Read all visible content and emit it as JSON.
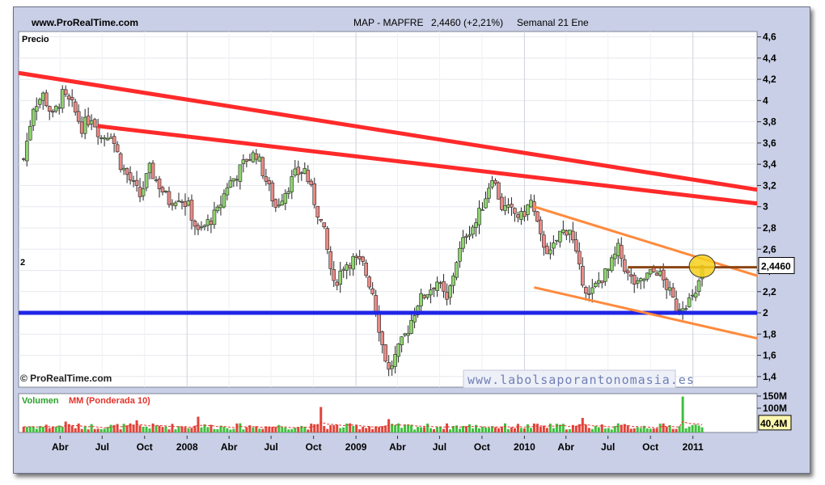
{
  "header": {
    "site": "www.ProRealTime.com",
    "instrument": "MAP - MAPFRE",
    "price_change": "2,4460 (+2,21%)",
    "period": "Semanal  21 Ene"
  },
  "panel_label": "Precio",
  "copyright": "© ProRealTime.com",
  "watermark": "www.labolsaporantonomasia.es",
  "support_label": "2",
  "volume_label": {
    "prefix": "Volumen",
    "ma": "MM (Ponderada 10)"
  },
  "colors": {
    "up": "#8fd46f",
    "down": "#e88a86",
    "resistance": "#ff2a2a",
    "support": "#1f25e6",
    "channel": "#ff8a3c",
    "current_level": "#8b4513",
    "highlight": "#f7d01c",
    "panel_bg": "#ffffff",
    "frame_bg": "#c9cfe6"
  },
  "chart_data": [
    {
      "type": "candlestick",
      "title": "MAP - MAPFRE",
      "period": "weekly",
      "y_ticks": [
        "4,6",
        "4,4",
        "4,2",
        "4",
        "3,8",
        "3,6",
        "3,4",
        "3,2",
        "3",
        "2,8",
        "2,6",
        "2,4",
        "2,2",
        "2",
        "1,8",
        "1,6",
        "1,4"
      ],
      "ylim": [
        1.3,
        4.65
      ],
      "x_ticks": [
        "Abr",
        "Jul",
        "Oct",
        "2008",
        "Abr",
        "Jul",
        "Oct",
        "2009",
        "Abr",
        "Jul",
        "Oct",
        "2010",
        "Abr",
        "Jul",
        "Oct",
        "2011"
      ],
      "x_tick_dates": [
        "2007-04-01",
        "2007-07-01",
        "2007-10-01",
        "2008-01-01",
        "2008-04-01",
        "2008-07-01",
        "2008-10-01",
        "2009-01-01",
        "2009-04-01",
        "2009-07-01",
        "2009-10-01",
        "2010-01-01",
        "2010-04-01",
        "2010-07-01",
        "2010-10-01",
        "2011-01-01"
      ],
      "close_path": [
        [
          "2007-01-12",
          3.45
        ],
        [
          "2007-02-02",
          3.95
        ],
        [
          "2007-02-23",
          4.05
        ],
        [
          "2007-03-16",
          3.85
        ],
        [
          "2007-04-06",
          4.05
        ],
        [
          "2007-04-27",
          3.95
        ],
        [
          "2007-05-18",
          3.75
        ],
        [
          "2007-06-08",
          3.85
        ],
        [
          "2007-06-29",
          3.65
        ],
        [
          "2007-07-20",
          3.7
        ],
        [
          "2007-08-10",
          3.4
        ],
        [
          "2007-08-31",
          3.25
        ],
        [
          "2007-09-21",
          3.1
        ],
        [
          "2007-10-12",
          3.35
        ],
        [
          "2007-11-02",
          3.2
        ],
        [
          "2007-11-23",
          3.05
        ],
        [
          "2007-12-14",
          3.1
        ],
        [
          "2008-01-04",
          3.0
        ],
        [
          "2008-01-25",
          2.75
        ],
        [
          "2008-02-15",
          2.85
        ],
        [
          "2008-03-07",
          2.95
        ],
        [
          "2008-03-28",
          3.2
        ],
        [
          "2008-04-18",
          3.3
        ],
        [
          "2008-05-09",
          3.45
        ],
        [
          "2008-05-30",
          3.5
        ],
        [
          "2008-06-20",
          3.25
        ],
        [
          "2008-07-11",
          3.0
        ],
        [
          "2008-08-01",
          3.15
        ],
        [
          "2008-08-22",
          3.3
        ],
        [
          "2008-09-12",
          3.35
        ],
        [
          "2008-10-03",
          3.05
        ],
        [
          "2008-10-24",
          2.75
        ],
        [
          "2008-11-14",
          2.25
        ],
        [
          "2008-12-05",
          2.45
        ],
        [
          "2008-12-26",
          2.5
        ],
        [
          "2009-01-16",
          2.45
        ],
        [
          "2009-02-06",
          2.2
        ],
        [
          "2009-02-27",
          1.7
        ],
        [
          "2009-03-13",
          1.45
        ],
        [
          "2009-04-03",
          1.65
        ],
        [
          "2009-04-24",
          1.85
        ],
        [
          "2009-05-15",
          2.1
        ],
        [
          "2009-06-05",
          2.2
        ],
        [
          "2009-06-26",
          2.3
        ],
        [
          "2009-07-17",
          2.1
        ],
        [
          "2009-08-07",
          2.5
        ],
        [
          "2009-08-28",
          2.75
        ],
        [
          "2009-09-18",
          2.85
        ],
        [
          "2009-10-09",
          3.1
        ],
        [
          "2009-10-23",
          3.3
        ],
        [
          "2009-11-13",
          3.0
        ],
        [
          "2009-12-04",
          2.95
        ],
        [
          "2009-12-25",
          2.9
        ],
        [
          "2010-01-15",
          3.05
        ],
        [
          "2010-02-05",
          2.7
        ],
        [
          "2010-02-26",
          2.55
        ],
        [
          "2010-03-19",
          2.75
        ],
        [
          "2010-04-09",
          2.8
        ],
        [
          "2010-04-30",
          2.4
        ],
        [
          "2010-05-21",
          2.15
        ],
        [
          "2010-06-11",
          2.3
        ],
        [
          "2010-07-02",
          2.4
        ],
        [
          "2010-07-23",
          2.6
        ],
        [
          "2010-08-13",
          2.35
        ],
        [
          "2010-09-03",
          2.25
        ],
        [
          "2010-09-24",
          2.35
        ],
        [
          "2010-10-15",
          2.4
        ],
        [
          "2010-11-05",
          2.25
        ],
        [
          "2010-11-26",
          2.05
        ],
        [
          "2010-12-17",
          2.1
        ],
        [
          "2011-01-07",
          2.15
        ],
        [
          "2011-01-21",
          2.446
        ]
      ],
      "last_price": "2,4460",
      "trendlines": [
        {
          "name": "resistance-upper",
          "from": [
            "2007-01-01",
            4.26
          ],
          "to": [
            "2011-05-20",
            3.16
          ]
        },
        {
          "name": "resistance-lower",
          "from": [
            "2007-06-22",
            3.76
          ],
          "to": [
            "2011-05-20",
            3.03
          ]
        },
        {
          "name": "support",
          "from": [
            "2007-01-01",
            2.0
          ],
          "to": [
            "2011-05-20",
            2.0
          ]
        },
        {
          "name": "channel-top",
          "from": [
            "2010-01-22",
            3.0
          ],
          "to": [
            "2011-05-20",
            2.35
          ]
        },
        {
          "name": "channel-bottom",
          "from": [
            "2010-01-22",
            2.24
          ],
          "to": [
            "2011-05-20",
            1.76
          ]
        },
        {
          "name": "current-level",
          "from": [
            "2010-08-13",
            2.43
          ],
          "to": [
            "2011-05-20",
            2.43
          ]
        }
      ],
      "highlight_point": [
        "2011-01-21",
        2.44
      ]
    },
    {
      "type": "bar",
      "title": "Volumen MM (Ponderada 10)",
      "y_ticks": [
        "150M",
        "100M"
      ],
      "ylim": [
        0,
        160
      ],
      "current_value": "40,4M",
      "notable_bars": [
        {
          "x": "2007-04-13",
          "value": 45
        },
        {
          "x": "2007-09-14",
          "value": 50
        },
        {
          "x": "2008-01-25",
          "value": 65
        },
        {
          "x": "2008-10-17",
          "value": 105
        },
        {
          "x": "2009-03-13",
          "value": 55
        },
        {
          "x": "2010-05-07",
          "value": 60
        },
        {
          "x": "2010-12-10",
          "value": 148
        }
      ],
      "typical_range": [
        12,
        38
      ]
    }
  ]
}
